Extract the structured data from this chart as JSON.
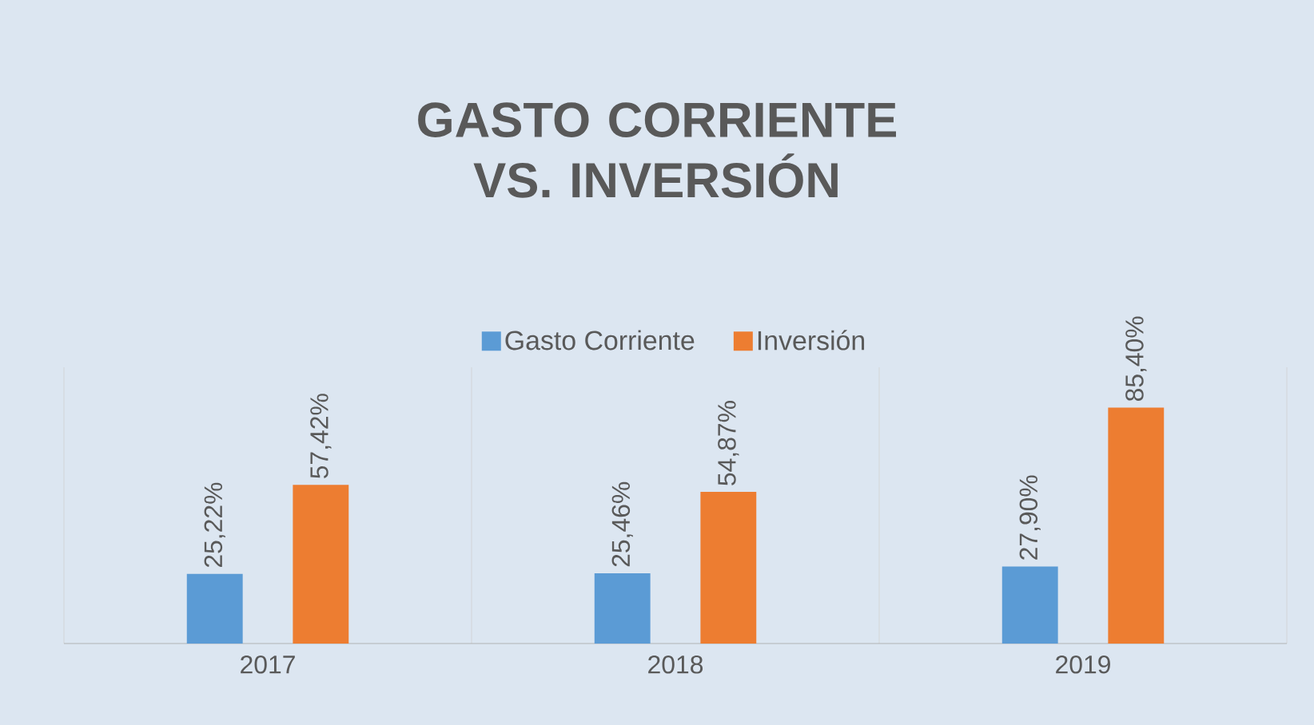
{
  "chart_data": {
    "type": "bar",
    "title": "GASTO CORRIENTE VS. INVERSIÓN",
    "categories": [
      "2017",
      "2018",
      "2019"
    ],
    "series": [
      {
        "name": "Gasto Corriente",
        "color": "#5b9bd5",
        "values": [
          25.22,
          25.46,
          27.9
        ],
        "value_labels": [
          "25,22%",
          "25,46%",
          "27,90%"
        ]
      },
      {
        "name": "Inversión",
        "color": "#ed7d31",
        "values": [
          57.42,
          54.87,
          85.4
        ],
        "value_labels": [
          "57,42%",
          "54,87%",
          "85,40%"
        ]
      }
    ],
    "ylim": [
      0,
      100
    ],
    "grid": "x",
    "legend": "top",
    "tick_labels": "x"
  }
}
